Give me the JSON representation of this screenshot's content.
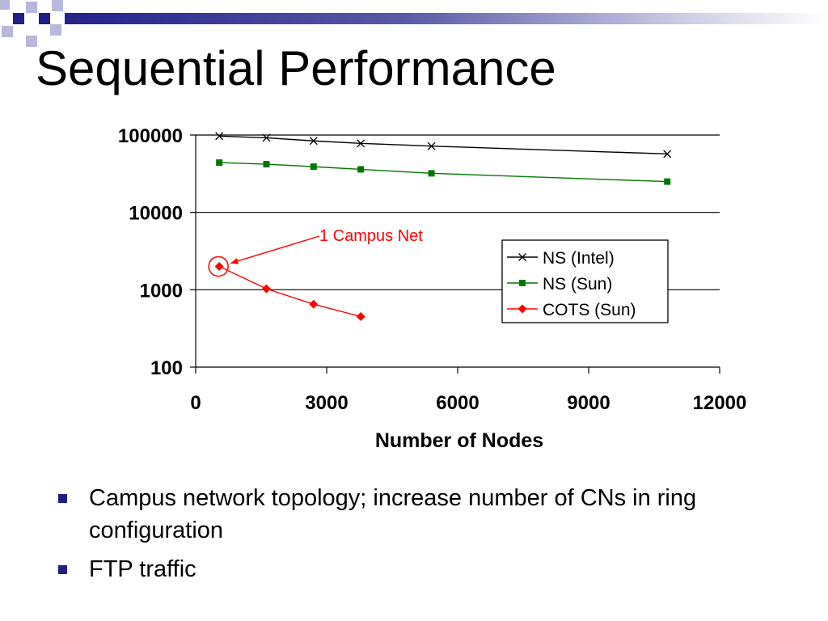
{
  "title": "Sequential Performance",
  "colors": {
    "deco_dark": "#1f1f87",
    "deco_light": "#b8b8dc",
    "bullet": "#1f1f87",
    "annotation": "#ff0000"
  },
  "bullets": [
    "Campus network topology; increase number of CNs in ring configuration",
    "FTP traffic"
  ],
  "chart_data": {
    "type": "line",
    "title": "",
    "xlabel": "Number of Nodes",
    "ylabel": "",
    "xlim": [
      0,
      12000
    ],
    "ylim": [
      100,
      100000
    ],
    "yscale": "log",
    "xticks": [
      "0",
      "3000",
      "6000",
      "9000",
      "12000"
    ],
    "yticks": [
      "100",
      "1000",
      "10000",
      "100000"
    ],
    "grid": "horizontal",
    "legend_position": "right",
    "series": [
      {
        "name": "NS (Intel)",
        "color": "#000000",
        "marker": "x",
        "points": [
          [
            540,
            97000
          ],
          [
            1620,
            92000
          ],
          [
            2700,
            84000
          ],
          [
            3780,
            78000
          ],
          [
            5400,
            72000
          ],
          [
            10800,
            57000
          ]
        ]
      },
      {
        "name": "NS (Sun)",
        "color": "#007700",
        "marker": "square",
        "points": [
          [
            540,
            44000
          ],
          [
            1620,
            42000
          ],
          [
            2700,
            39000
          ],
          [
            3780,
            36000
          ],
          [
            5400,
            32000
          ],
          [
            10800,
            25000
          ]
        ]
      },
      {
        "name": "COTS (Sun)",
        "color": "#ff0000",
        "marker": "diamond",
        "points": [
          [
            540,
            2000
          ],
          [
            1620,
            1030
          ],
          [
            2700,
            650
          ],
          [
            3780,
            450
          ]
        ]
      }
    ],
    "annotations": [
      {
        "text": "1 Campus Net",
        "color": "#ff0000",
        "target_series": 2,
        "target_point": 0
      }
    ]
  }
}
